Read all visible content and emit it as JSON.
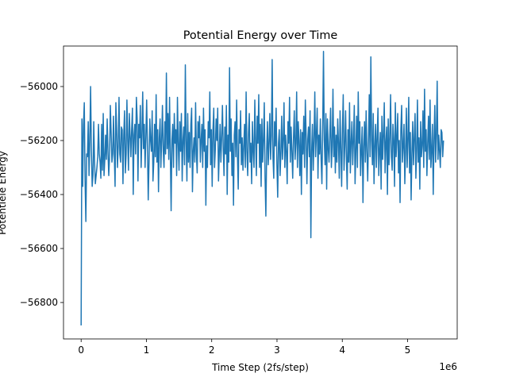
{
  "chart_data": {
    "type": "line",
    "title": "Potential Energy over Time",
    "xlabel": "Time Step (2fs/step)",
    "ylabel": "Potentiele Energy",
    "x_offset_label": "1e6",
    "xlim": [
      -0.27,
      5.76
    ],
    "ylim": [
      -56935,
      -55850
    ],
    "xticks": [
      0,
      1,
      2,
      3,
      4,
      5
    ],
    "xtick_labels": [
      "0",
      "1",
      "2",
      "3",
      "4",
      "5"
    ],
    "yticks": [
      -56800,
      -56600,
      -56400,
      -56200,
      -56000
    ],
    "ytick_labels": [
      "−56800",
      "−56600",
      "−56400",
      "−56200",
      "−56000"
    ],
    "grid": false,
    "line_color": "#1f77b4",
    "series": [
      {
        "x_start": 0.0,
        "x_end": 5.55,
        "values": [
          -56885,
          -56120,
          -56370,
          -56140,
          -56060,
          -56350,
          -56500,
          -56250,
          -56260,
          -56130,
          -56330,
          -56200,
          -56000,
          -56240,
          -56370,
          -56330,
          -56130,
          -56280,
          -56360,
          -56330,
          -56300,
          -56260,
          -56140,
          -56250,
          -56280,
          -56340,
          -56140,
          -56310,
          -56100,
          -56330,
          -56270,
          -56180,
          -56270,
          -56120,
          -56240,
          -56330,
          -56260,
          -56070,
          -56170,
          -56280,
          -56250,
          -56110,
          -56250,
          -56370,
          -56060,
          -56160,
          -56300,
          -56220,
          -56040,
          -56250,
          -56280,
          -56150,
          -56160,
          -56360,
          -56180,
          -56090,
          -56320,
          -56250,
          -56050,
          -56200,
          -56310,
          -56100,
          -56180,
          -56260,
          -56160,
          -56080,
          -56400,
          -56180,
          -56140,
          -56250,
          -56040,
          -56120,
          -56350,
          -56140,
          -56190,
          -56070,
          -56300,
          -56180,
          -56020,
          -56230,
          -56140,
          -56300,
          -56190,
          -56050,
          -56220,
          -56420,
          -56280,
          -56120,
          -56200,
          -56240,
          -56090,
          -56350,
          -56280,
          -56140,
          -56260,
          -56030,
          -56280,
          -56160,
          -56390,
          -56190,
          -56120,
          -56300,
          -56200,
          -56070,
          -56240,
          -56300,
          -56130,
          -56250,
          -55950,
          -56230,
          -56100,
          -56270,
          -56040,
          -56250,
          -56460,
          -56200,
          -56140,
          -56300,
          -56100,
          -56210,
          -56160,
          -56330,
          -56040,
          -56210,
          -56310,
          -56130,
          -56240,
          -56100,
          -56350,
          -56200,
          -56150,
          -56290,
          -55920,
          -56200,
          -56350,
          -56100,
          -56280,
          -56170,
          -56300,
          -56140,
          -56080,
          -56390,
          -56240,
          -56190,
          -56280,
          -56060,
          -56250,
          -56320,
          -56130,
          -56190,
          -56110,
          -56280,
          -56200,
          -56140,
          -56300,
          -56080,
          -56240,
          -56160,
          -56440,
          -56220,
          -56300,
          -56130,
          -56190,
          -56020,
          -56290,
          -56160,
          -56370,
          -56160,
          -56080,
          -56300,
          -56230,
          -56120,
          -56200,
          -56080,
          -56350,
          -56250,
          -56140,
          -56280,
          -56190,
          -56070,
          -56230,
          -56330,
          -56150,
          -56250,
          -56070,
          -56400,
          -56180,
          -56280,
          -55930,
          -56240,
          -56120,
          -56330,
          -56210,
          -56440,
          -56180,
          -56130,
          -56260,
          -56050,
          -56250,
          -56380,
          -56160,
          -56210,
          -56090,
          -56290,
          -56190,
          -56310,
          -56220,
          -56140,
          -56300,
          -56020,
          -56240,
          -56330,
          -56170,
          -56100,
          -56280,
          -56210,
          -56360,
          -56130,
          -56240,
          -56300,
          -56050,
          -56200,
          -56330,
          -56110,
          -56210,
          -56030,
          -56300,
          -56140,
          -56370,
          -56120,
          -56280,
          -56200,
          -56060,
          -56340,
          -56480,
          -56240,
          -56130,
          -56290,
          -56210,
          -56100,
          -56270,
          -56180,
          -55900,
          -56260,
          -56340,
          -56130,
          -56220,
          -56080,
          -56290,
          -56410,
          -56210,
          -56160,
          -56330,
          -56250,
          -56110,
          -56270,
          -56200,
          -56060,
          -56300,
          -56180,
          -56240,
          -56360,
          -56130,
          -56210,
          -56040,
          -56280,
          -56150,
          -56240,
          -56340,
          -56190,
          -56090,
          -56270,
          -56210,
          -56020,
          -56300,
          -56130,
          -56200,
          -56330,
          -56160,
          -56400,
          -56170,
          -56250,
          -56110,
          -56300,
          -56050,
          -56180,
          -56360,
          -56200,
          -56150,
          -56260,
          -56090,
          -56560,
          -56240,
          -56140,
          -56310,
          -56200,
          -56020,
          -56260,
          -56180,
          -56080,
          -56340,
          -56180,
          -56250,
          -56120,
          -56270,
          -56360,
          -56150,
          -55870,
          -56200,
          -56290,
          -56100,
          -56380,
          -56120,
          -56230,
          -56280,
          -56180,
          -56080,
          -56300,
          -56220,
          -56010,
          -56260,
          -56150,
          -56320,
          -56180,
          -56280,
          -56120,
          -56210,
          -56340,
          -56090,
          -56230,
          -56370,
          -56160,
          -56030,
          -56310,
          -56220,
          -56090,
          -56260,
          -56380,
          -56160,
          -56280,
          -56060,
          -56320,
          -56210,
          -56130,
          -56290,
          -56200,
          -56070,
          -56360,
          -56240,
          -56110,
          -56300,
          -56020,
          -56210,
          -56130,
          -56330,
          -56240,
          -56150,
          -56430,
          -56220,
          -56130,
          -56280,
          -56090,
          -56240,
          -56350,
          -56200,
          -56030,
          -56260,
          -55890,
          -56200,
          -56290,
          -56100,
          -56360,
          -56220,
          -56140,
          -56300,
          -56190,
          -56080,
          -56330,
          -56240,
          -56170,
          -56380,
          -56110,
          -56270,
          -56180,
          -56060,
          -56320,
          -56210,
          -56150,
          -56400,
          -56120,
          -56290,
          -56190,
          -56030,
          -56260,
          -56310,
          -56140,
          -56200,
          -56370,
          -56060,
          -56260,
          -56190,
          -56100,
          -56320,
          -56200,
          -56430,
          -56160,
          -56070,
          -56280,
          -56220,
          -56140,
          -56360,
          -56240,
          -56080,
          -56300,
          -56200,
          -56040,
          -56320,
          -56170,
          -56420,
          -56250,
          -56130,
          -56290,
          -56190,
          -56100,
          -56340,
          -56240,
          -56050,
          -56280,
          -56190,
          -56380,
          -56130,
          -56260,
          -56220,
          -56090,
          -56300,
          -56010,
          -56240,
          -56160,
          -56330,
          -56210,
          -56110,
          -56270,
          -56050,
          -56300,
          -56240,
          -56140,
          -56400,
          -56200,
          -56070,
          -56280,
          -56180,
          -55980,
          -56270,
          -56180,
          -56240,
          -56300,
          -56160,
          -56170,
          -56260,
          -56200
        ]
      }
    ]
  }
}
